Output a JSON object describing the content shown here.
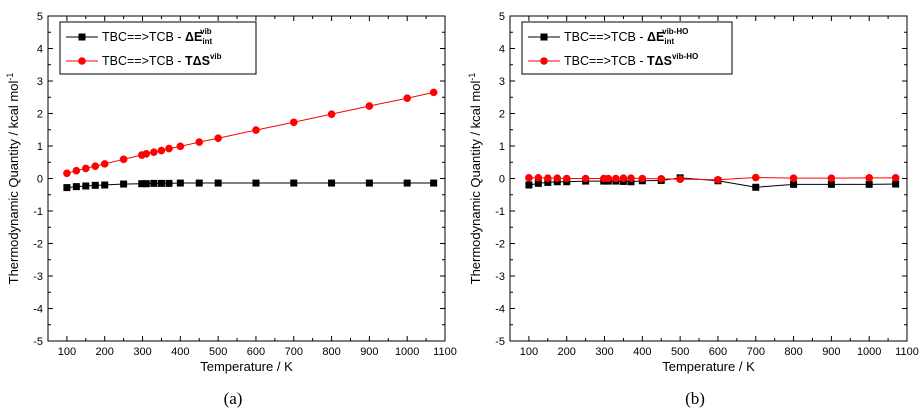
{
  "figure": {
    "panel_labels": [
      "(a)",
      "(b)"
    ]
  },
  "chart_data": [
    {
      "type": "line",
      "panel": "(a)",
      "xlabel": "Temperature / K",
      "ylabel": "Thermodynamic Quantity / kcal mol",
      "ylabel_sup": "-1",
      "xlim": [
        50,
        1100
      ],
      "ylim": [
        -5,
        5
      ],
      "xticks": [
        100,
        200,
        300,
        400,
        500,
        600,
        700,
        800,
        900,
        1000,
        1100
      ],
      "yticks": [
        -5,
        -4,
        -3,
        -2,
        -1,
        0,
        1,
        2,
        3,
        4,
        5
      ],
      "legend_position": "top-left",
      "series": [
        {
          "name": "TBC==>TCB - ΔE_int^vib",
          "legend_plain": "TBC==>TCB - ",
          "legend_bold": "ΔE",
          "legend_sub": "int",
          "legend_sup": "vib",
          "color": "#000000",
          "marker": "square",
          "x": [
            100,
            125,
            150,
            175,
            200,
            250,
            298,
            310,
            330,
            350,
            370,
            400,
            450,
            500,
            600,
            700,
            800,
            900,
            1000,
            1070
          ],
          "y": [
            -0.28,
            -0.25,
            -0.23,
            -0.21,
            -0.2,
            -0.17,
            -0.16,
            -0.16,
            -0.15,
            -0.15,
            -0.15,
            -0.14,
            -0.14,
            -0.14,
            -0.14,
            -0.14,
            -0.14,
            -0.14,
            -0.14,
            -0.14
          ]
        },
        {
          "name": "TBC==>TCB - TΔS^vib",
          "legend_plain": "TBC==>TCB - ",
          "legend_bold": "TΔS",
          "legend_sub": "",
          "legend_sup": "vib",
          "color": "#ff0000",
          "marker": "circle",
          "x": [
            100,
            125,
            150,
            175,
            200,
            250,
            298,
            310,
            330,
            350,
            370,
            400,
            450,
            500,
            600,
            700,
            800,
            900,
            1000,
            1070
          ],
          "y": [
            0.16,
            0.24,
            0.31,
            0.38,
            0.45,
            0.59,
            0.72,
            0.76,
            0.81,
            0.86,
            0.92,
            0.99,
            1.12,
            1.24,
            1.49,
            1.73,
            1.98,
            2.23,
            2.47,
            2.65
          ]
        }
      ]
    },
    {
      "type": "line",
      "panel": "(b)",
      "xlabel": "Temperature / K",
      "ylabel": "Thermodynamic Quantity / kcal mol",
      "ylabel_sup": "-1",
      "xlim": [
        50,
        1100
      ],
      "ylim": [
        -5,
        5
      ],
      "xticks": [
        100,
        200,
        300,
        400,
        500,
        600,
        700,
        800,
        900,
        1000,
        1100
      ],
      "yticks": [
        -5,
        -4,
        -3,
        -2,
        -1,
        0,
        1,
        2,
        3,
        4,
        5
      ],
      "legend_position": "top-left",
      "series": [
        {
          "name": "TBC==>TCB - ΔE_int^vib-HO",
          "legend_plain": "TBC==>TCB - ",
          "legend_bold": "ΔE",
          "legend_sub": "int",
          "legend_sup": "vib-HO",
          "color": "#000000",
          "marker": "square",
          "x": [
            100,
            125,
            150,
            175,
            200,
            250,
            298,
            310,
            330,
            350,
            370,
            400,
            450,
            500,
            600,
            700,
            800,
            900,
            1000,
            1070
          ],
          "y": [
            -0.2,
            -0.15,
            -0.12,
            -0.1,
            -0.1,
            -0.08,
            -0.08,
            -0.08,
            -0.08,
            -0.09,
            -0.1,
            -0.07,
            -0.06,
            0.02,
            -0.07,
            -0.27,
            -0.18,
            -0.18,
            -0.18,
            -0.17
          ]
        },
        {
          "name": "TBC==>TCB - TΔS^vib-HO",
          "legend_plain": "TBC==>TCB - ",
          "legend_bold": "TΔS",
          "legend_sub": "",
          "legend_sup": "vib-HO",
          "color": "#ff0000",
          "marker": "circle",
          "x": [
            100,
            125,
            150,
            175,
            200,
            250,
            298,
            310,
            330,
            350,
            370,
            400,
            450,
            500,
            600,
            700,
            800,
            900,
            1000,
            1070
          ],
          "y": [
            0.02,
            0.02,
            0.01,
            0.01,
            0.0,
            0.0,
            0.0,
            0.0,
            0.0,
            0.01,
            0.01,
            0.0,
            -0.01,
            -0.02,
            -0.04,
            0.03,
            0.01,
            0.01,
            0.02,
            0.02
          ]
        }
      ]
    }
  ]
}
